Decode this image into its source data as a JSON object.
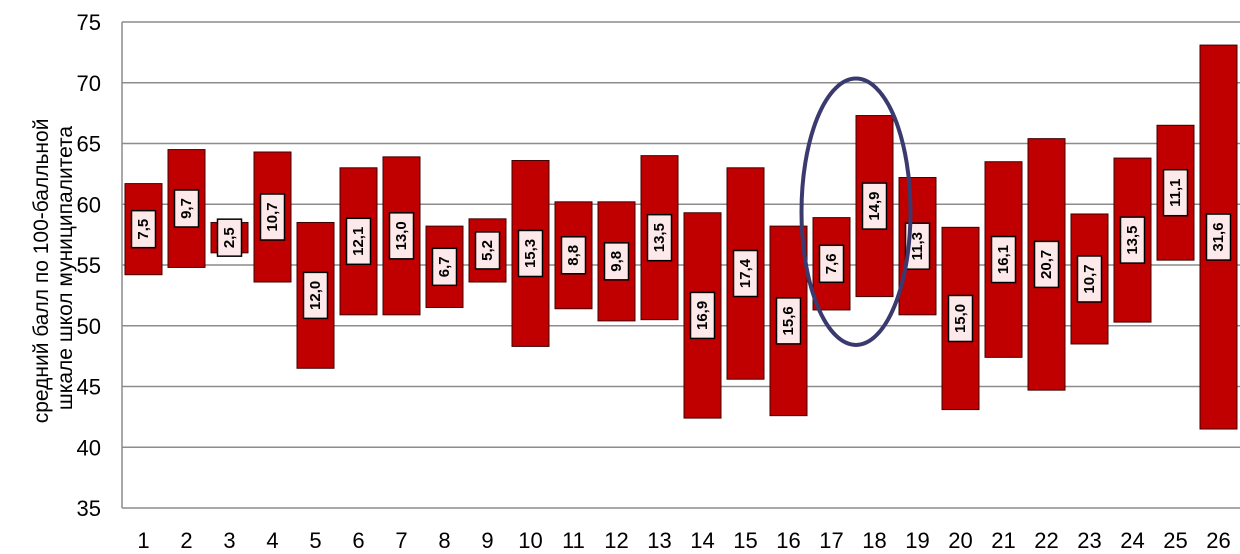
{
  "chart_data": {
    "type": "bar",
    "subtype": "floating-range",
    "ylabel_lines": [
      "средний балл по  100-балльной",
      "шкале школ муниципалитета"
    ],
    "ylim": [
      35,
      75
    ],
    "yticks": [
      35,
      40,
      45,
      50,
      55,
      60,
      65,
      70,
      75
    ],
    "grid": true,
    "bar_color": "#c00000",
    "label_fill": "#fde9e9",
    "highlight_color": "#3a3a6e",
    "highlighted_categories": [
      "17",
      "18"
    ],
    "categories": [
      "1",
      "2",
      "3",
      "4",
      "5",
      "6",
      "7",
      "8",
      "9",
      "10",
      "11",
      "12",
      "13",
      "14",
      "15",
      "16",
      "17",
      "18",
      "19",
      "20",
      "21",
      "22",
      "23",
      "24",
      "25",
      "26"
    ],
    "ranges": [
      [
        54.2,
        61.7
      ],
      [
        54.8,
        64.5
      ],
      [
        56.0,
        58.5
      ],
      [
        53.6,
        64.3
      ],
      [
        46.5,
        58.5
      ],
      [
        50.9,
        63.0
      ],
      [
        50.9,
        63.9
      ],
      [
        51.5,
        58.2
      ],
      [
        53.6,
        58.8
      ],
      [
        48.3,
        63.6
      ],
      [
        51.4,
        60.2
      ],
      [
        50.4,
        60.2
      ],
      [
        50.5,
        64.0
      ],
      [
        42.4,
        59.3
      ],
      [
        45.6,
        63.0
      ],
      [
        42.6,
        58.2
      ],
      [
        51.3,
        58.9
      ],
      [
        52.4,
        67.3
      ],
      [
        50.9,
        62.2
      ],
      [
        43.1,
        58.1
      ],
      [
        47.4,
        63.5
      ],
      [
        44.7,
        65.4
      ],
      [
        48.5,
        59.2
      ],
      [
        50.3,
        63.8
      ],
      [
        55.4,
        66.5
      ],
      [
        41.5,
        73.1
      ]
    ],
    "values": [
      7.5,
      9.7,
      2.5,
      10.7,
      12.0,
      12.1,
      13.0,
      6.7,
      5.2,
      15.3,
      8.8,
      9.8,
      13.5,
      16.9,
      17.4,
      15.6,
      7.6,
      14.9,
      11.3,
      15.0,
      16.1,
      20.7,
      10.7,
      13.5,
      11.1,
      31.6
    ],
    "value_labels": [
      "7,5",
      "9,7",
      "2,5",
      "10,7",
      "12,0",
      "12,1",
      "13,0",
      "6,7",
      "5,2",
      "15,3",
      "8,8",
      "9,8",
      "13,5",
      "16,9",
      "17,4",
      "15,6",
      "7,6",
      "14,9",
      "11,3",
      "15,0",
      "16,1",
      "20,7",
      "10,7",
      "13,5",
      "11,1",
      "31,6"
    ]
  }
}
